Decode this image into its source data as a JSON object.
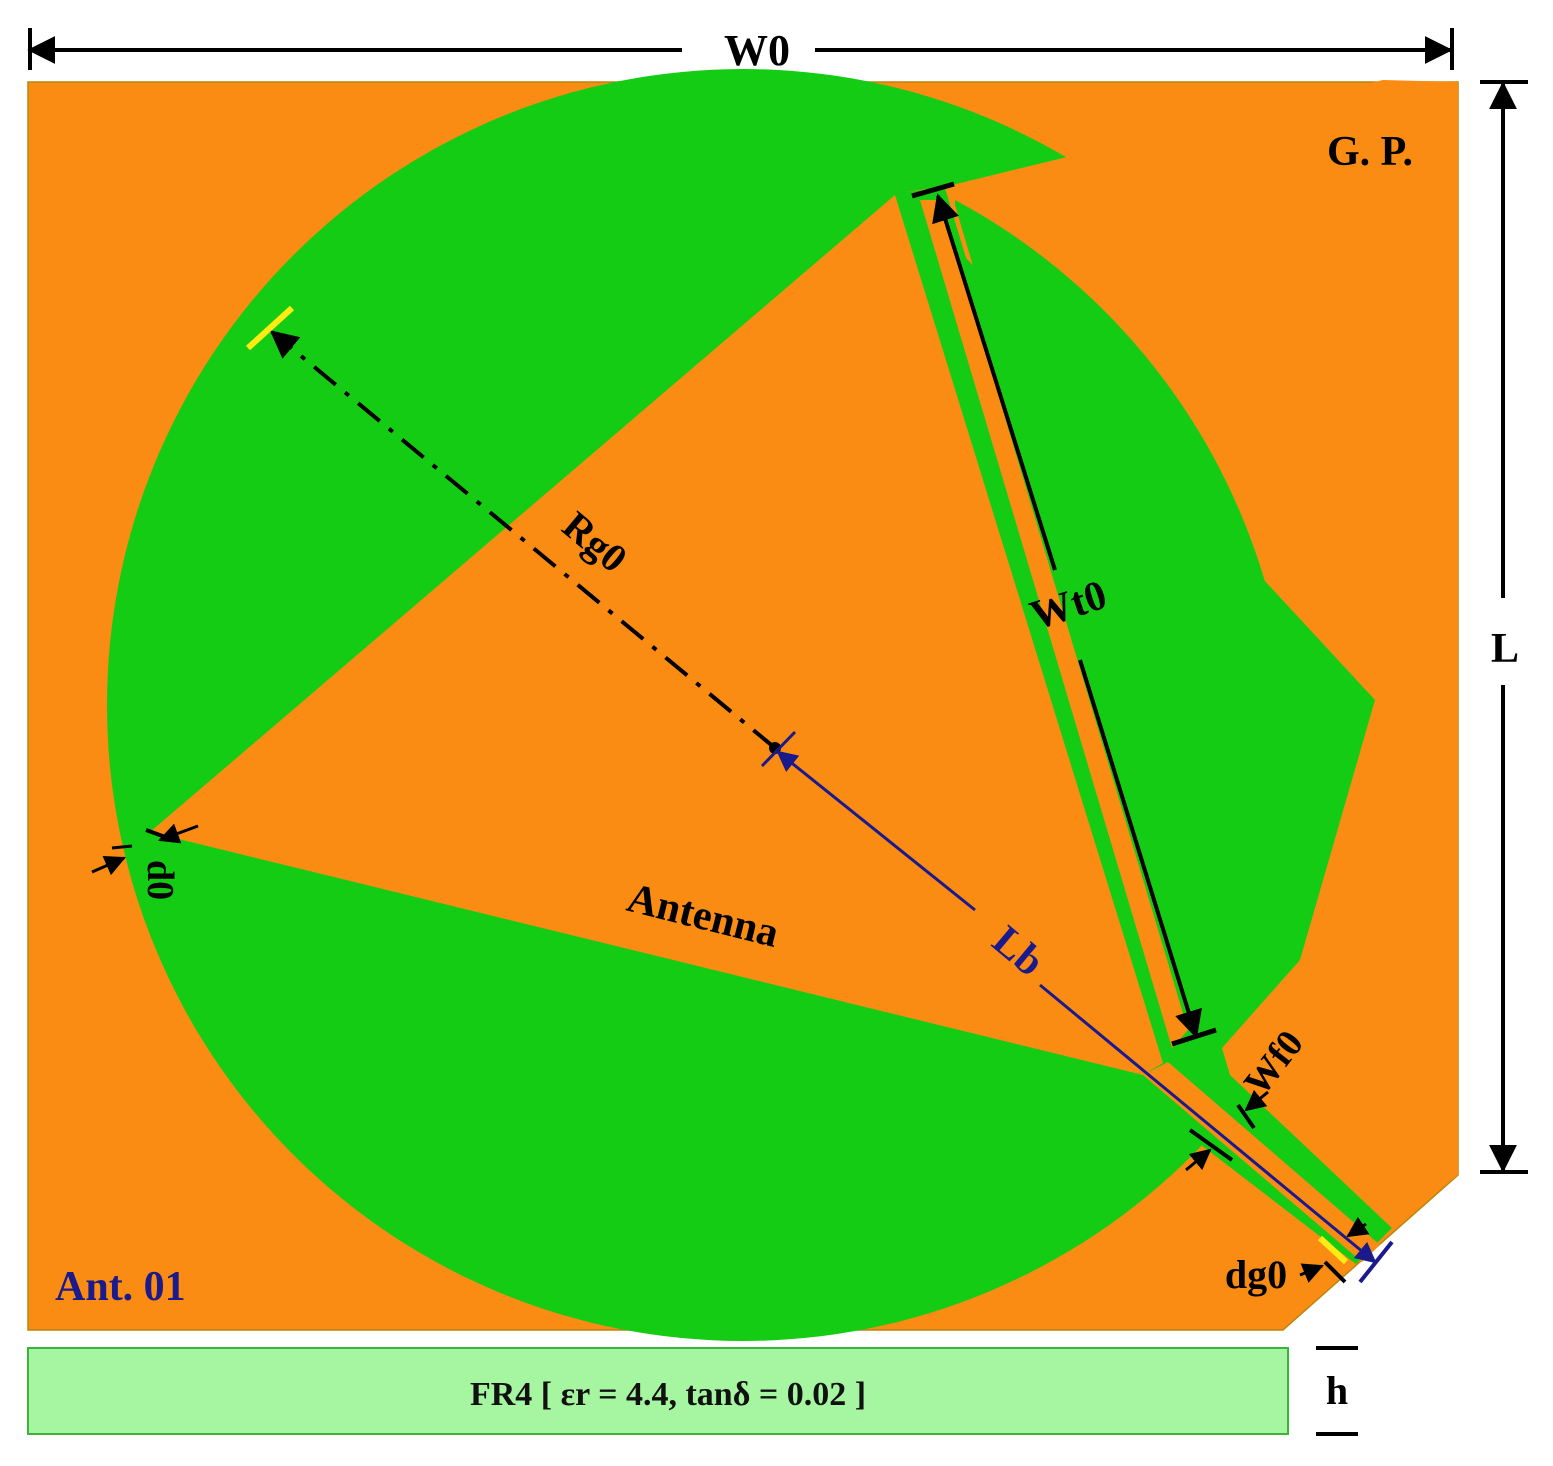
{
  "labels": {
    "w0": "W0",
    "l": "L",
    "gp": "G. P.",
    "rg0": "Rg0",
    "wt0": "Wt0",
    "antenna": "Antenna",
    "lb": "Lb",
    "d0": "d0",
    "wf0": "Wf0",
    "dg0": "dg0",
    "ant_id": "Ant. 01",
    "h": "h",
    "substrate": "FR4 [ εr = 4.4, tanδ = 0.02 ]"
  },
  "colors": {
    "ground_plane": "#FA8C14",
    "antenna": "#14CC14",
    "substrate": "#A6F5A0",
    "dimension": "#000000",
    "lb_dimension": "#1A1A8C",
    "highlight": "#FFEB14"
  }
}
